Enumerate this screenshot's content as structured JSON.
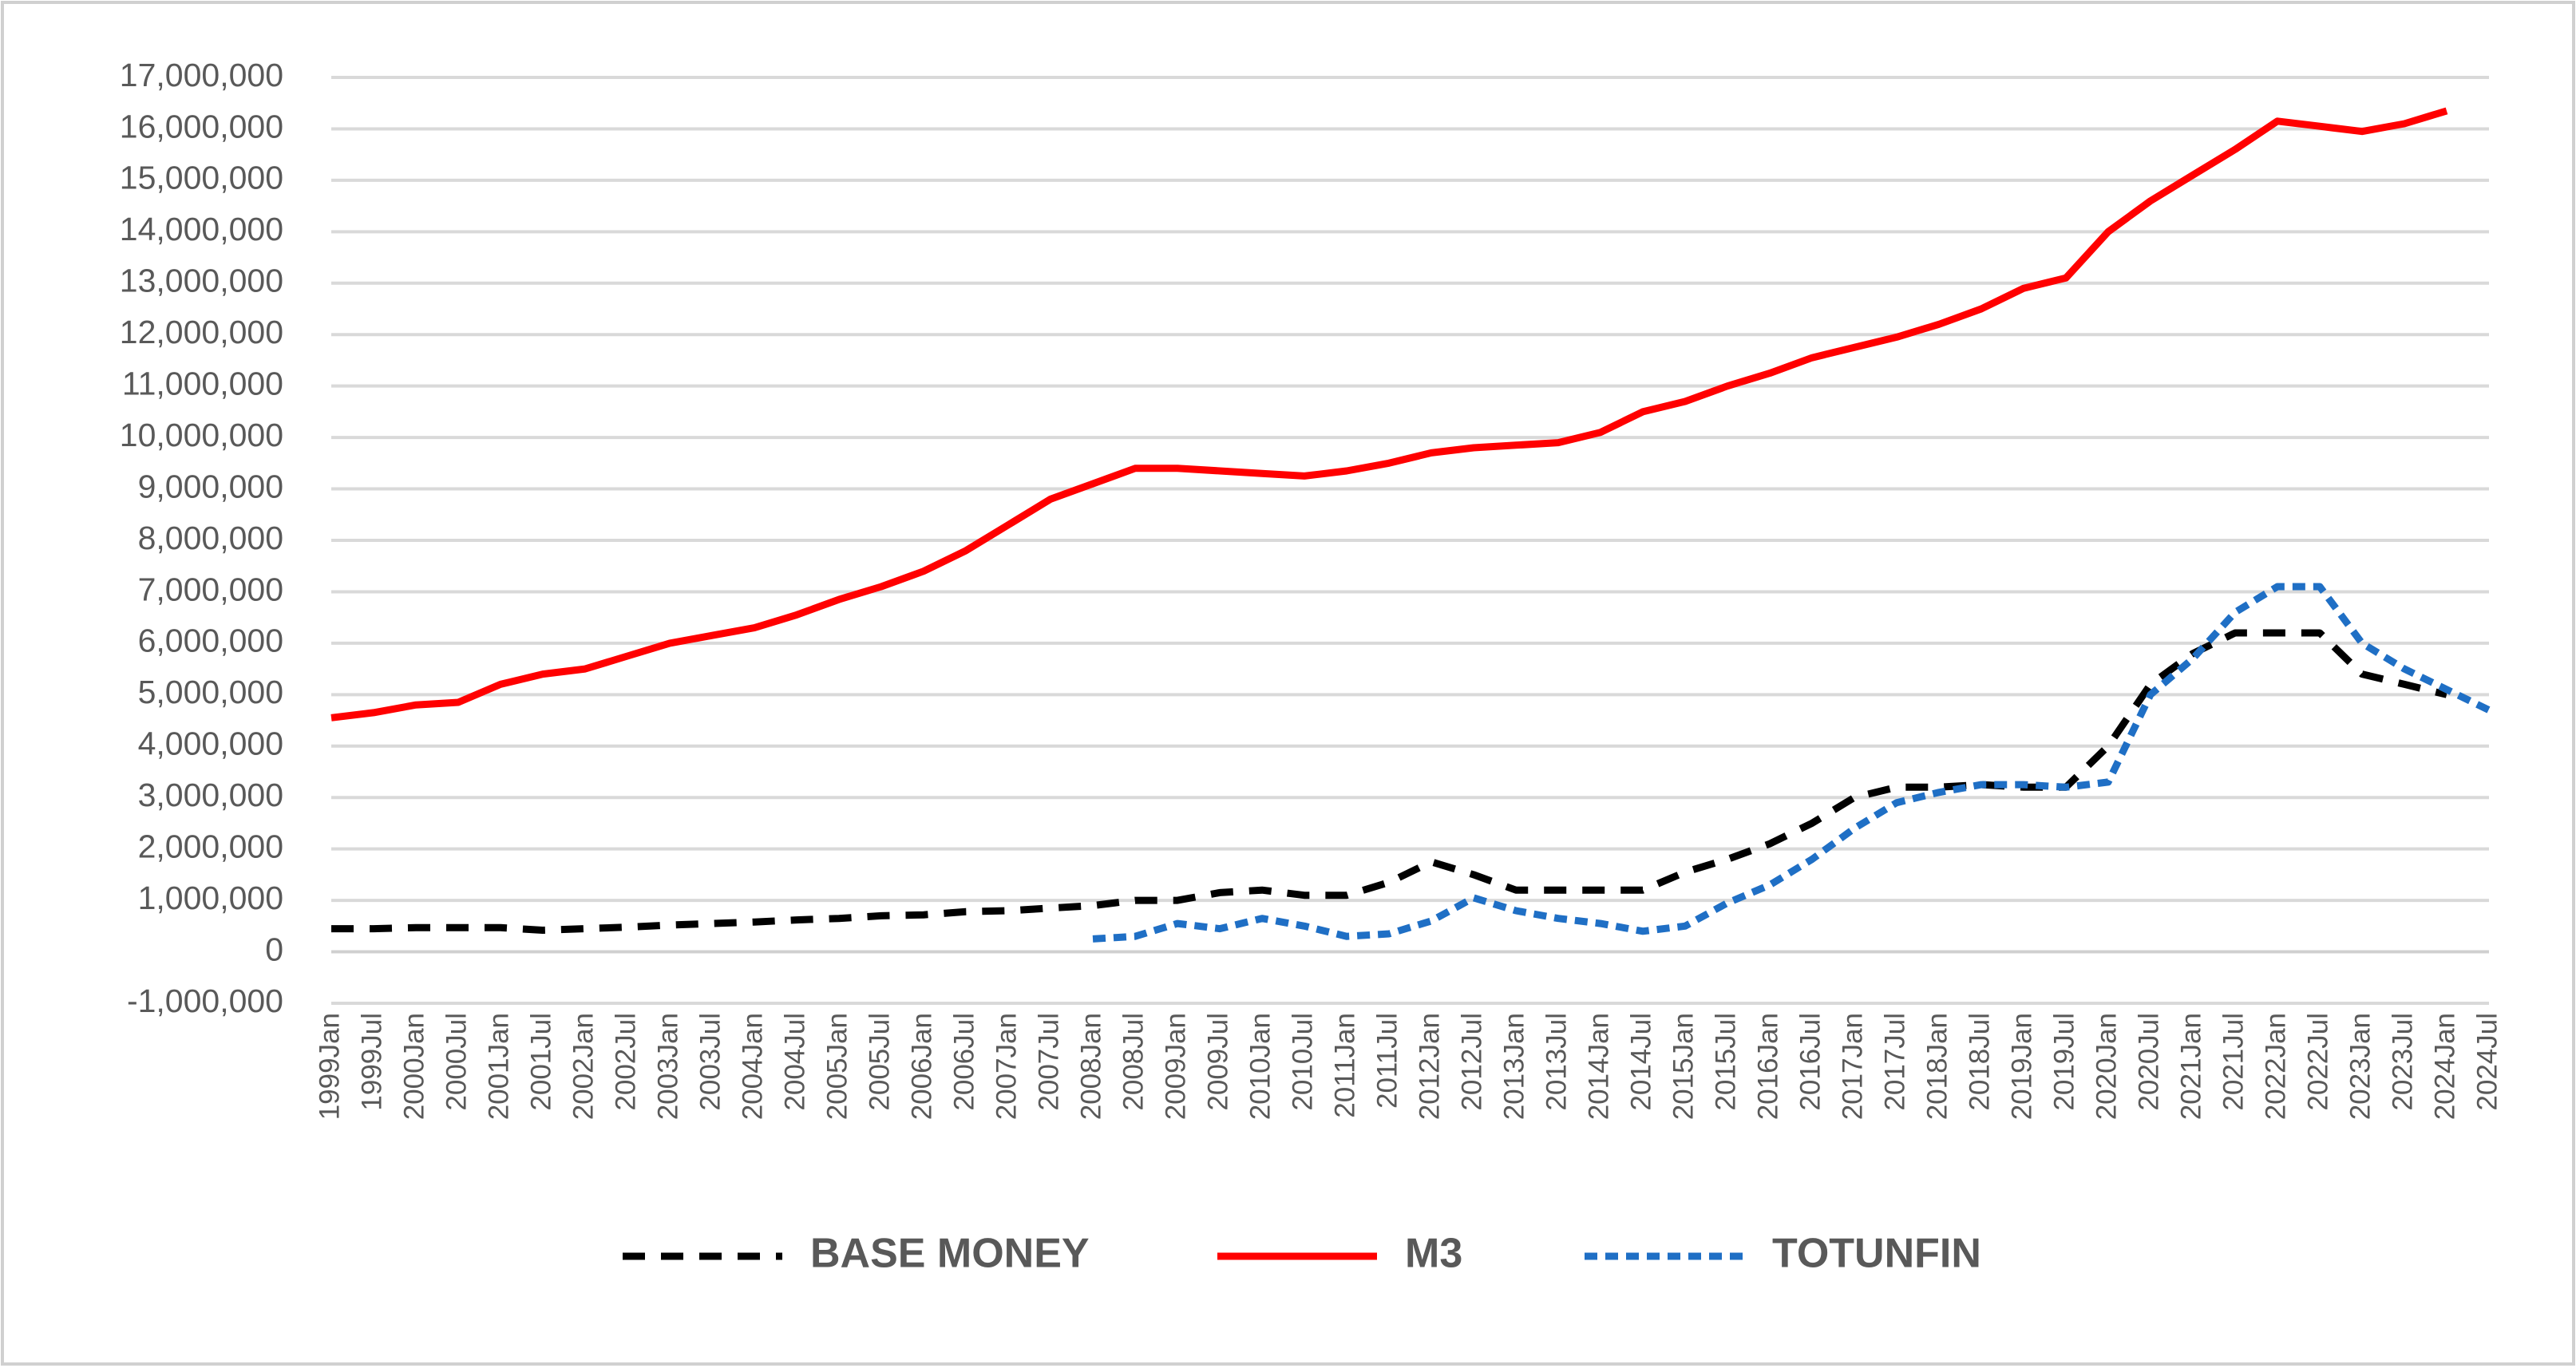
{
  "chart_data": {
    "type": "line",
    "categories": [
      "1999Jan",
      "1999Jul",
      "2000Jan",
      "2000Jul",
      "2001Jan",
      "2001Jul",
      "2002Jan",
      "2002Jul",
      "2003Jan",
      "2003Jul",
      "2004Jan",
      "2004Jul",
      "2005Jan",
      "2005Jul",
      "2006Jan",
      "2006Jul",
      "2007Jan",
      "2007Jul",
      "2008Jan",
      "2008Jul",
      "2009Jan",
      "2009Jul",
      "2010Jan",
      "2010Jul",
      "2011Jan",
      "2011Jul",
      "2012Jan",
      "2012Jul",
      "2013Jan",
      "2013Jul",
      "2014Jan",
      "2014Jul",
      "2015Jan",
      "2015Jul",
      "2016Jan",
      "2016Jul",
      "2017Jan",
      "2017Jul",
      "2018Jan",
      "2018Jul",
      "2019Jan",
      "2019Jul",
      "2020Jan",
      "2020Jul",
      "2021Jan",
      "2021Jul",
      "2022Jan",
      "2022Jul",
      "2023Jan",
      "2023Jul",
      "2024Jan",
      "2024Jul"
    ],
    "series": [
      {
        "name": "BASE MONEY",
        "color": "#000000",
        "dash": "28 20",
        "values": [
          450000,
          450000,
          470000,
          470000,
          470000,
          420000,
          450000,
          480000,
          520000,
          550000,
          580000,
          620000,
          650000,
          700000,
          720000,
          780000,
          800000,
          850000,
          900000,
          1000000,
          1000000,
          1150000,
          1200000,
          1100000,
          1100000,
          1350000,
          1750000,
          1500000,
          1200000,
          1200000,
          1200000,
          1200000,
          1550000,
          1800000,
          2100000,
          2500000,
          3000000,
          3200000,
          3200000,
          3250000,
          3200000,
          3200000,
          4000000,
          5200000,
          5800000,
          6200000,
          6200000,
          6200000,
          5400000,
          5200000,
          5000000,
          null
        ]
      },
      {
        "name": "M3",
        "color": "#ff0000",
        "dash": "none",
        "values": [
          4550000,
          4650000,
          4800000,
          4850000,
          5200000,
          5400000,
          5500000,
          5750000,
          6000000,
          6150000,
          6300000,
          6550000,
          6850000,
          7100000,
          7400000,
          7800000,
          8300000,
          8800000,
          9100000,
          9400000,
          9400000,
          9350000,
          9300000,
          9250000,
          9350000,
          9500000,
          9700000,
          9800000,
          9850000,
          9900000,
          10100000,
          10500000,
          10700000,
          11000000,
          11250000,
          11550000,
          11750000,
          11950000,
          12200000,
          12500000,
          12900000,
          13100000,
          14000000,
          14600000,
          15100000,
          15600000,
          16150000,
          16050000,
          15950000,
          16100000,
          16350000,
          null
        ]
      },
      {
        "name": "TOTUNFIN",
        "color": "#1f6fc5",
        "dash": "16 10",
        "values": [
          null,
          null,
          null,
          null,
          null,
          null,
          null,
          null,
          null,
          null,
          null,
          null,
          null,
          null,
          null,
          null,
          null,
          null,
          250000,
          300000,
          550000,
          450000,
          650000,
          500000,
          300000,
          350000,
          600000,
          1050000,
          800000,
          650000,
          550000,
          400000,
          500000,
          950000,
          1300000,
          1800000,
          2400000,
          2900000,
          3100000,
          3250000,
          3250000,
          3200000,
          3300000,
          5000000,
          5700000,
          6600000,
          7100000,
          7100000,
          6000000,
          5500000,
          5100000,
          4700000
        ]
      }
    ],
    "ylim": [
      -1000000,
      17000000
    ],
    "yticks": [
      {
        "value": -1000000,
        "label": "-1,000,000"
      },
      0,
      {
        "value": 1000000,
        "label": "1,000,000"
      },
      {
        "value": 2000000,
        "label": "2,000,000"
      },
      {
        "value": 3000000,
        "label": "3,000,000"
      },
      {
        "value": 4000000,
        "label": "4,000,000"
      },
      {
        "value": 5000000,
        "label": "5,000,000"
      },
      {
        "value": 6000000,
        "label": "6,000,000"
      },
      {
        "value": 7000000,
        "label": "7,000,000"
      },
      {
        "value": 8000000,
        "label": "8,000,000"
      },
      {
        "value": 9000000,
        "label": "9,000,000"
      },
      {
        "value": 10000000,
        "label": "10,000,000"
      },
      {
        "value": 11000000,
        "label": "11,000,000"
      },
      {
        "value": 12000000,
        "label": "12,000,000"
      },
      {
        "value": 13000000,
        "label": "13,000,000"
      },
      {
        "value": 14000000,
        "label": "14,000,000"
      },
      {
        "value": 15000000,
        "label": "15,000,000"
      },
      {
        "value": 16000000,
        "label": "16,000,000"
      },
      {
        "value": 17000000,
        "label": "17,000,000"
      }
    ],
    "grid": true,
    "legend": "bottom"
  }
}
